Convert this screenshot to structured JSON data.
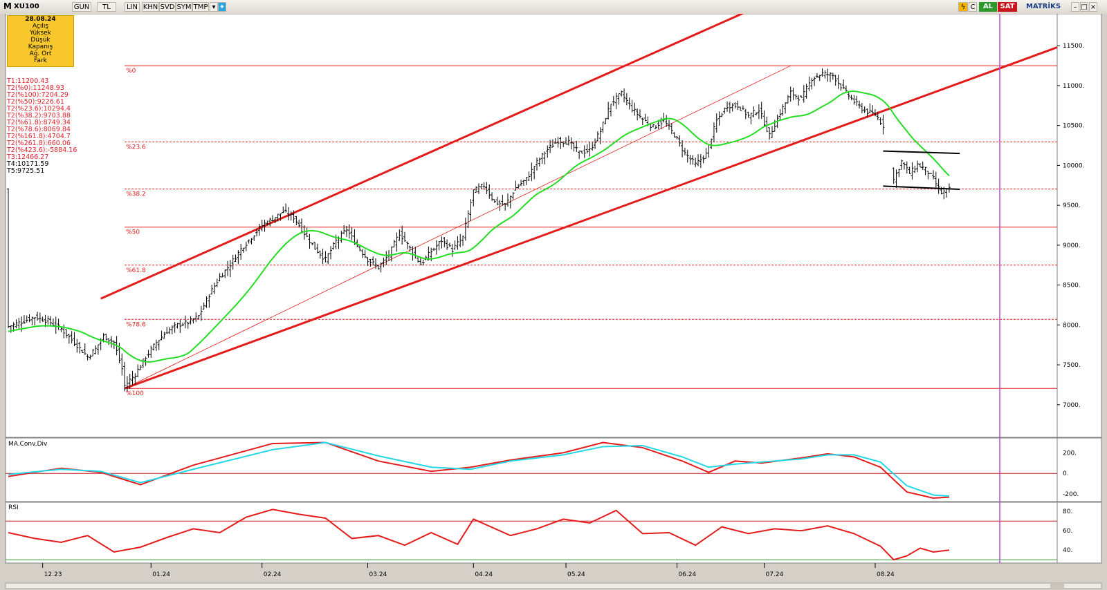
{
  "toolbar": {
    "logo": "M",
    "symbol": "XU100",
    "buttons": [
      "GUN",
      "TL",
      "LIN",
      "KHN",
      "SVD",
      "SYM",
      "TMP"
    ],
    "buy_label": "AL",
    "sell_label": "SAT",
    "brand": "MATRİKS"
  },
  "infobox": {
    "date": "28.08.24",
    "rows": [
      "Açılış",
      "Yüksek",
      "Düşük",
      "Kapanış",
      "Ağ. Ort",
      "Fark"
    ]
  },
  "levels": [
    "T1:11200.43",
    "T2(%0):11248.93",
    "T2(%100):7204.29",
    "T2(%50):9226.61",
    "T2(%23.6):10294.4",
    "T2(%38.2):9703.88",
    "T2(%61.8):8749.34",
    "T2(%78.6):8069.84",
    "T2(%161.8):4704.7",
    "T2(%261.8):660.06",
    "T2(%423.6):-5884.16",
    "T3:12466.27"
  ],
  "levels_black": [
    "T4:10171.59",
    "T5:9725.51"
  ],
  "colors": {
    "channel": "#e31b1b",
    "ma": "#22dd22",
    "ma_blue_overlap": "#2b2bcf",
    "macd": "#e31b1b",
    "signal": "#22d7e6",
    "vline": "#b44bc8",
    "fib": "#e31b1b"
  },
  "chart_data": [
    {
      "type": "ohlc-bar",
      "title": "",
      "ylim": [
        6600,
        11900
      ],
      "y_ticks": [
        7000,
        7500,
        8000,
        8500,
        9000,
        9500,
        10000,
        10500,
        11000,
        11500
      ],
      "x_ticks": [
        "12.23",
        "01.24",
        "02.24",
        "03.24",
        "04.24",
        "05.24",
        "06.24",
        "07.24",
        "08.24"
      ],
      "fib_levels": [
        {
          "label": "%0",
          "value": 11248.93,
          "style": "solid"
        },
        {
          "label": "%23.6",
          "value": 10294.4,
          "style": "dashed"
        },
        {
          "label": "%38.2",
          "value": 9703.88,
          "style": "dashed"
        },
        {
          "label": "%50",
          "value": 9226.61,
          "style": "solid"
        },
        {
          "label": "%61.8",
          "value": 8749.34,
          "style": "dashed"
        },
        {
          "label": "%78.6",
          "value": 8069.84,
          "style": "dashed"
        },
        {
          "label": "%100",
          "value": 7204.29,
          "style": "solid"
        }
      ],
      "close_series_approx": [
        [
          0,
          7980
        ],
        [
          5,
          8040
        ],
        [
          10,
          8100
        ],
        [
          15,
          8050
        ],
        [
          20,
          7950
        ],
        [
          25,
          7780
        ],
        [
          30,
          7600
        ],
        [
          33,
          7700
        ],
        [
          36,
          7860
        ],
        [
          40,
          7780
        ],
        [
          43,
          7450
        ],
        [
          44,
          7240
        ],
        [
          48,
          7380
        ],
        [
          52,
          7600
        ],
        [
          56,
          7780
        ],
        [
          60,
          7920
        ],
        [
          64,
          8000
        ],
        [
          68,
          8030
        ],
        [
          72,
          8110
        ],
        [
          76,
          8380
        ],
        [
          80,
          8600
        ],
        [
          84,
          8760
        ],
        [
          88,
          8950
        ],
        [
          92,
          9100
        ],
        [
          96,
          9250
        ],
        [
          100,
          9330
        ],
        [
          104,
          9420
        ],
        [
          108,
          9350
        ],
        [
          112,
          9150
        ],
        [
          116,
          8960
        ],
        [
          120,
          8820
        ],
        [
          124,
          9050
        ],
        [
          128,
          9200
        ],
        [
          132,
          8990
        ],
        [
          136,
          8820
        ],
        [
          140,
          8720
        ],
        [
          144,
          8880
        ],
        [
          148,
          9150
        ],
        [
          152,
          8960
        ],
        [
          156,
          8760
        ],
        [
          160,
          8920
        ],
        [
          164,
          9060
        ],
        [
          168,
          8940
        ],
        [
          172,
          9100
        ],
        [
          176,
          9680
        ],
        [
          180,
          9750
        ],
        [
          184,
          9540
        ],
        [
          188,
          9500
        ],
        [
          192,
          9720
        ],
        [
          196,
          9830
        ],
        [
          200,
          10040
        ],
        [
          204,
          10200
        ],
        [
          208,
          10310
        ],
        [
          212,
          10290
        ],
        [
          216,
          10160
        ],
        [
          220,
          10190
        ],
        [
          224,
          10430
        ],
        [
          228,
          10780
        ],
        [
          232,
          10900
        ],
        [
          236,
          10710
        ],
        [
          240,
          10580
        ],
        [
          244,
          10480
        ],
        [
          248,
          10560
        ],
        [
          252,
          10380
        ],
        [
          256,
          10150
        ],
        [
          260,
          10010
        ],
        [
          264,
          10140
        ],
        [
          268,
          10560
        ],
        [
          272,
          10750
        ],
        [
          276,
          10750
        ],
        [
          280,
          10620
        ],
        [
          284,
          10700
        ],
        [
          288,
          10370
        ],
        [
          292,
          10660
        ],
        [
          296,
          10910
        ],
        [
          300,
          10830
        ],
        [
          304,
          11090
        ],
        [
          308,
          11150
        ],
        [
          312,
          11130
        ],
        [
          316,
          10950
        ],
        [
          320,
          10800
        ],
        [
          324,
          10680
        ],
        [
          328,
          10640
        ],
        [
          331,
          10500
        ],
        [
          335,
          9820
        ],
        [
          338,
          10050
        ],
        [
          341,
          9900
        ],
        [
          344,
          10010
        ],
        [
          347,
          9950
        ],
        [
          350,
          9830
        ],
        [
          353,
          9650
        ],
        [
          356,
          9700
        ]
      ]
    },
    {
      "type": "line",
      "title": "MA.Conv.Div",
      "ylim": [
        -260,
        330
      ],
      "y_ticks": [
        200,
        0,
        -200
      ],
      "series": [
        {
          "values": [
            [
              0,
              -30
            ],
            [
              20,
              50
            ],
            [
              35,
              10
            ],
            [
              50,
              -110
            ],
            [
              70,
              80
            ],
            [
              100,
              290
            ],
            [
              120,
              300
            ],
            [
              140,
              120
            ],
            [
              160,
              20
            ],
            [
              175,
              60
            ],
            [
              190,
              130
            ],
            [
              210,
              200
            ],
            [
              225,
              300
            ],
            [
              240,
              250
            ],
            [
              255,
              120
            ],
            [
              265,
              10
            ],
            [
              275,
              120
            ],
            [
              285,
              100
            ],
            [
              300,
              150
            ],
            [
              310,
              190
            ],
            [
              320,
              160
            ],
            [
              330,
              60
            ],
            [
              340,
              -180
            ],
            [
              350,
              -240
            ],
            [
              356,
              -230
            ]
          ]
        },
        {
          "values": [
            [
              0,
              -10
            ],
            [
              20,
              40
            ],
            [
              35,
              20
            ],
            [
              50,
              -90
            ],
            [
              70,
              40
            ],
            [
              100,
              230
            ],
            [
              120,
              300
            ],
            [
              140,
              170
            ],
            [
              160,
              60
            ],
            [
              175,
              40
            ],
            [
              190,
              120
            ],
            [
              210,
              180
            ],
            [
              225,
              260
            ],
            [
              240,
              270
            ],
            [
              255,
              160
            ],
            [
              265,
              60
            ],
            [
              275,
              90
            ],
            [
              285,
              110
            ],
            [
              300,
              140
            ],
            [
              310,
              180
            ],
            [
              320,
              180
            ],
            [
              330,
              110
            ],
            [
              340,
              -120
            ],
            [
              350,
              -210
            ],
            [
              356,
              -220
            ]
          ]
        }
      ]
    },
    {
      "type": "line",
      "title": "RSI",
      "ylim": [
        28,
        88
      ],
      "y_ticks": [
        80,
        60,
        40
      ],
      "hlines": [
        70,
        30
      ],
      "series": [
        {
          "values": [
            [
              0,
              58
            ],
            [
              10,
              52
            ],
            [
              20,
              48
            ],
            [
              30,
              55
            ],
            [
              40,
              38
            ],
            [
              50,
              43
            ],
            [
              60,
              53
            ],
            [
              70,
              62
            ],
            [
              80,
              58
            ],
            [
              90,
              74
            ],
            [
              100,
              82
            ],
            [
              110,
              77
            ],
            [
              120,
              73
            ],
            [
              130,
              52
            ],
            [
              140,
              55
            ],
            [
              150,
              45
            ],
            [
              160,
              58
            ],
            [
              170,
              46
            ],
            [
              176,
              72
            ],
            [
              190,
              55
            ],
            [
              200,
              62
            ],
            [
              210,
              72
            ],
            [
              220,
              68
            ],
            [
              230,
              81
            ],
            [
              240,
              57
            ],
            [
              250,
              58
            ],
            [
              260,
              45
            ],
            [
              270,
              64
            ],
            [
              280,
              57
            ],
            [
              290,
              62
            ],
            [
              300,
              60
            ],
            [
              310,
              65
            ],
            [
              320,
              57
            ],
            [
              330,
              44
            ],
            [
              335,
              30
            ],
            [
              340,
              34
            ],
            [
              345,
              42
            ],
            [
              350,
              38
            ],
            [
              356,
              40
            ]
          ]
        }
      ]
    }
  ]
}
